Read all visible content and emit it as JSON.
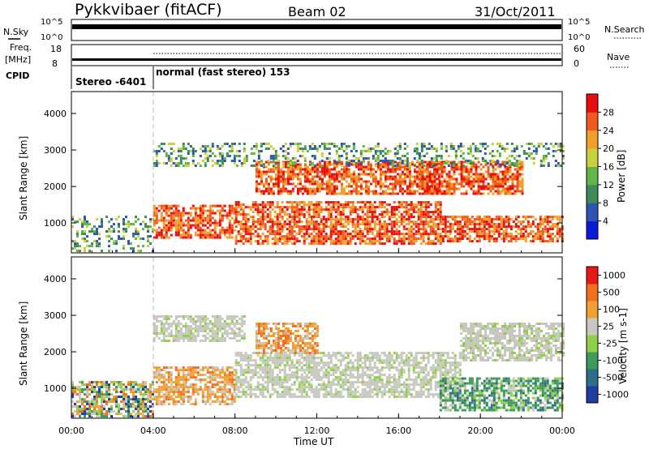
{
  "header": {
    "station": "Pykkvibaer (fitACF)",
    "beam": "Beam 02",
    "date": "31/Oct/2011"
  },
  "top_panels": {
    "nsky_label": "N.Sky",
    "nsky_ticks": [
      "10^5",
      "10^0"
    ],
    "nsearch_label": "N.Search",
    "nsearch_ticks": [
      "10^5",
      "10^0"
    ],
    "freq_label_1": "Freq.",
    "freq_label_2": "[MHz]",
    "freq_ticks": [
      "18",
      "8"
    ],
    "nave_label": "Nave",
    "nave_ticks": [
      "60",
      "0"
    ],
    "cpid_label": "CPID",
    "cpid_segments": [
      {
        "text": "Stereo -6401",
        "start_hour": 0
      },
      {
        "text": "normal (fast stereo) 153",
        "start_hour": 4
      }
    ]
  },
  "chart_data": [
    {
      "type": "heatmap",
      "quantity": "Power",
      "ylabel": "Slant Range [km]",
      "ylim": [
        180,
        4600
      ],
      "yticks": [
        1000,
        2000,
        3000,
        4000
      ],
      "xlim": [
        0,
        24
      ],
      "mode_change_hour": 4,
      "colorbar": {
        "label": "Power [dB]",
        "tick_labels": [
          "4",
          "8",
          "12",
          "16",
          "20",
          "24",
          "28"
        ],
        "colors": [
          "#0a1ad8",
          "#2f55b0",
          "#3d8a5a",
          "#63b54a",
          "#c7d23a",
          "#f0a02a",
          "#f05a1e",
          "#e80e0e"
        ]
      },
      "echo_regions": [
        {
          "from_hour": 0.0,
          "to_hour": 4.0,
          "range_km": [
            250,
            1200
          ],
          "level": "weak"
        },
        {
          "from_hour": 4.0,
          "to_hour": 8.0,
          "range_km": [
            600,
            1500
          ],
          "level": "strong"
        },
        {
          "from_hour": 8.0,
          "to_hour": 18.0,
          "range_km": [
            450,
            1600
          ],
          "level": "strong"
        },
        {
          "from_hour": 9.0,
          "to_hour": 18.0,
          "range_km": [
            1800,
            2700
          ],
          "level": "strong"
        },
        {
          "from_hour": 17.0,
          "to_hour": 22.0,
          "range_km": [
            1800,
            2700
          ],
          "level": "strong"
        },
        {
          "from_hour": 18.0,
          "to_hour": 24.0,
          "range_km": [
            500,
            1200
          ],
          "level": "strong"
        },
        {
          "from_hour": 4.0,
          "to_hour": 24.0,
          "range_km": [
            2600,
            3200
          ],
          "level": "weak"
        }
      ]
    },
    {
      "type": "heatmap",
      "quantity": "Velocity",
      "ylabel": "Slant Range [km]",
      "xlabel": "Time UT",
      "ylim": [
        180,
        4600
      ],
      "yticks": [
        1000,
        2000,
        3000,
        4000
      ],
      "xlim": [
        0,
        24
      ],
      "xtick_labels": [
        "00:00",
        "04:00",
        "08:00",
        "12:00",
        "16:00",
        "20:00",
        "00:00"
      ],
      "mode_change_hour": 4,
      "colorbar": {
        "label": "Velocity [m s-1]",
        "tick_labels": [
          "1000",
          "500",
          "100",
          "25",
          "-25",
          "-100",
          "-500",
          "-1000"
        ],
        "colors": [
          "#1f3fa0",
          "#2f6f8a",
          "#3c9a5a",
          "#8fcf4a",
          "#c8c8c0",
          "#f0a030",
          "#f07020",
          "#e81818"
        ]
      },
      "echo_regions": [
        {
          "from_hour": 0.0,
          "to_hour": 4.0,
          "range_km": [
            250,
            1200
          ],
          "level": "mixed"
        },
        {
          "from_hour": 4.0,
          "to_hour": 8.0,
          "range_km": [
            600,
            1600
          ],
          "level": "receding"
        },
        {
          "from_hour": 4.0,
          "to_hour": 8.5,
          "range_km": [
            2300,
            3000
          ],
          "level": "slow"
        },
        {
          "from_hour": 8.0,
          "to_hour": 19.0,
          "range_km": [
            800,
            2000
          ],
          "level": "slow"
        },
        {
          "from_hour": 9.0,
          "to_hour": 12.0,
          "range_km": [
            2000,
            2800
          ],
          "level": "receding"
        },
        {
          "from_hour": 18.0,
          "to_hour": 24.0,
          "range_km": [
            400,
            1300
          ],
          "level": "approaching"
        },
        {
          "from_hour": 19.0,
          "to_hour": 24.0,
          "range_km": [
            1800,
            2800
          ],
          "level": "slow"
        }
      ]
    }
  ]
}
